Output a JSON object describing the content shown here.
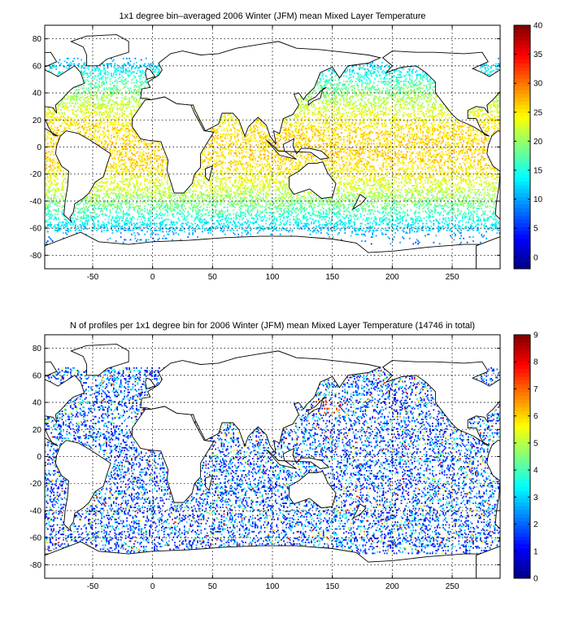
{
  "maps": [
    {
      "id": "temperature",
      "title": "1x1 degree bin–averaged 2006 Winter (JFM) mean Mixed Layer Temperature",
      "lon_range": [
        -90,
        290
      ],
      "lat_range": [
        -90,
        90
      ],
      "x_ticks": [
        -50,
        0,
        50,
        100,
        150,
        200,
        250
      ],
      "y_ticks": [
        80,
        60,
        40,
        20,
        0,
        -20,
        -40,
        -60,
        -80
      ],
      "grid": true,
      "colorbar": {
        "min": -2,
        "max": 40,
        "ticks": [
          40,
          35,
          30,
          25,
          20,
          15,
          10,
          5,
          0
        ],
        "colormap": "jet"
      }
    },
    {
      "id": "profile-count",
      "title": "N of profiles per 1x1 degree bin for 2006 Winter (JFM) mean Mixed Layer Temperature  (14746 in total)",
      "lon_range": [
        -90,
        290
      ],
      "lat_range": [
        -90,
        90
      ],
      "x_ticks": [
        -50,
        0,
        50,
        100,
        150,
        200,
        250
      ],
      "y_ticks": [
        80,
        60,
        40,
        20,
        0,
        -20,
        -40,
        -60,
        -80
      ],
      "grid": true,
      "colorbar": {
        "min": 0,
        "max": 9,
        "ticks": [
          9,
          8,
          7,
          6,
          5,
          4,
          3,
          2,
          1,
          0
        ],
        "colormap": "jet"
      }
    }
  ]
}
